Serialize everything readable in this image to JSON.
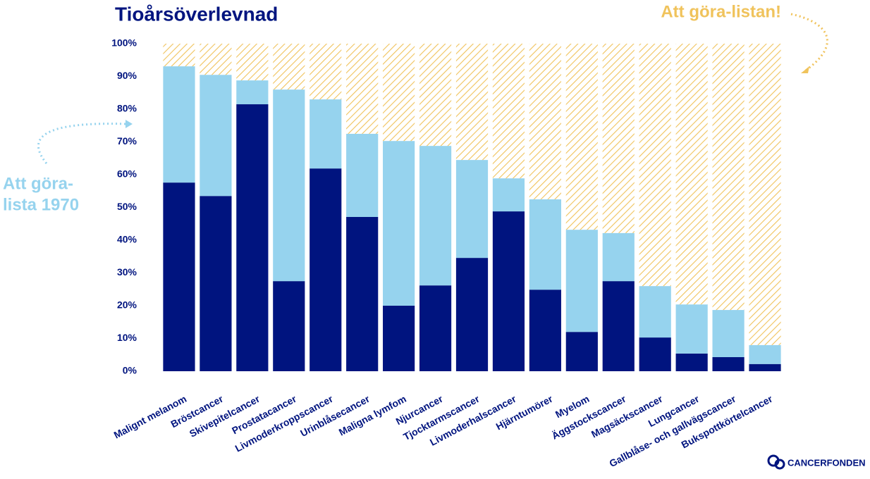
{
  "chart_data": {
    "type": "stacked_bar",
    "title": "Tioårsöverlevnad",
    "annotations": [
      "Att göra-listan!",
      "Att göra-",
      "lista 1970"
    ],
    "logo": "CANCERFONDEN",
    "categories": [
      "Malignt melanom",
      "Bröstcancer",
      "Skivepitelcancer",
      "Prostatacancer",
      "Livmoderkroppscancer",
      "Urinblåsecancer",
      "Maligna lymfom",
      "Njurcancer",
      "Tjocktarmscancer",
      "Livmoderhalscancer",
      "Hjärntumörer",
      "Myelom",
      "Äggstockscancer",
      "Magsäckscancer",
      "Lungcancer",
      "Gallblåse- och gallvägscancer",
      "Bukspottkörtelcancer"
    ],
    "series": [
      {
        "color": "#00147f",
        "pattern": "solid",
        "values": [
          57.6,
          53.5,
          81.5,
          27.5,
          61.9,
          47.1,
          20.0,
          26.2,
          34.6,
          48.8,
          24.9,
          12.0,
          27.5,
          10.3,
          5.4,
          4.3,
          2.2
        ]
      },
      {
        "color": "#96d3ee",
        "pattern": "solid",
        "values": [
          35.5,
          37.0,
          7.3,
          58.5,
          21.1,
          25.4,
          50.3,
          42.6,
          29.9,
          10.1,
          27.6,
          31.2,
          14.7,
          15.7,
          15.0,
          14.4,
          5.8
        ]
      },
      {
        "color": "#f0c35c",
        "pattern": "diagonal",
        "values": [
          6.9,
          9.5,
          11.2,
          14.0,
          17.0,
          27.5,
          29.7,
          31.2,
          35.5,
          41.1,
          47.5,
          56.8,
          57.8,
          74.0,
          79.6,
          81.3,
          92.0
        ]
      }
    ],
    "ylim": [
      0,
      100
    ],
    "yticks": [
      {
        "value": 0,
        "label": "0%"
      },
      {
        "value": 10,
        "label": "10%"
      },
      {
        "value": 20,
        "label": "20%"
      },
      {
        "value": 30,
        "label": "30%"
      },
      {
        "value": 40,
        "label": "40%"
      },
      {
        "value": 50,
        "label": "50%"
      },
      {
        "value": 60,
        "label": "60%"
      },
      {
        "value": 70,
        "label": "70%"
      },
      {
        "value": 80,
        "label": "80%"
      },
      {
        "value": 90,
        "label": "90%"
      },
      {
        "value": 100,
        "label": "100%"
      }
    ],
    "grid": false
  }
}
